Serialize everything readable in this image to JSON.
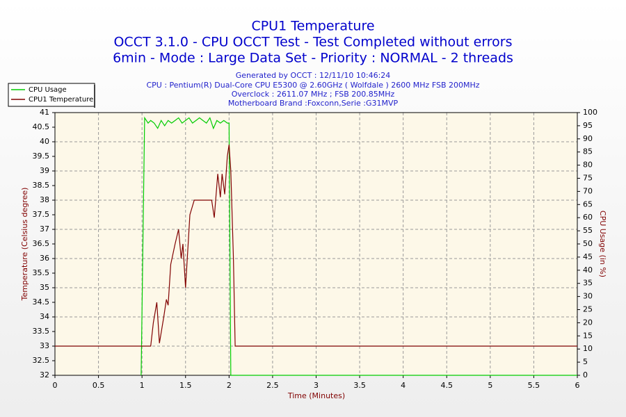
{
  "chart_data": {
    "type": "line",
    "title": "CPU1 Temperature",
    "subtitle": [
      "OCCT 3.1.0 - CPU OCCT Test - Test Completed without errors",
      "6min - Mode : Large Data Set - Priority : NORMAL - 2 threads"
    ],
    "annotations": [
      "Generated by OCCT : 12/11/10 10:46:24",
      "CPU : Pentium(R) Dual-Core CPU E5300 @ 2.60GHz ( Wolfdale ) 2600 MHz FSB 200MHz",
      "Overclock : 2611.07 MHz ; FSB 200.85MHz",
      "Motherboard Brand :Foxconn,Serie :G31MVP"
    ],
    "xlabel": "Time (Minutes)",
    "ylabel": "Temperature (Celsius degree)",
    "y2label": "CPU Usage (in %)",
    "xlim": [
      0,
      6
    ],
    "xticks": [
      0,
      0.5,
      1,
      1.5,
      2,
      2.5,
      3,
      3.5,
      4,
      4.5,
      5,
      5.5,
      6
    ],
    "ylim": [
      32,
      41
    ],
    "yticks": [
      32,
      32.5,
      33,
      33.5,
      34,
      34.5,
      35,
      35.5,
      36,
      36.5,
      37,
      37.5,
      38,
      38.5,
      39,
      39.5,
      40,
      40.5,
      41
    ],
    "y2lim": [
      0,
      100
    ],
    "y2ticks": [
      0,
      5,
      10,
      15,
      20,
      25,
      30,
      35,
      40,
      45,
      50,
      55,
      60,
      65,
      70,
      75,
      80,
      85,
      90,
      95,
      100
    ],
    "grid": true,
    "legend": "top-left",
    "series": [
      {
        "name": "CPU Usage",
        "color": "#00cc00",
        "axis": "y2",
        "x": [
          0.99,
          1.03,
          1.07,
          1.1,
          1.14,
          1.18,
          1.22,
          1.26,
          1.3,
          1.34,
          1.38,
          1.42,
          1.46,
          1.5,
          1.54,
          1.58,
          1.62,
          1.66,
          1.7,
          1.74,
          1.78,
          1.82,
          1.86,
          1.9,
          1.94,
          1.98,
          2.0,
          2.02,
          6
        ],
        "values": [
          0,
          98,
          96,
          97,
          96,
          94,
          97,
          95,
          97,
          96,
          97,
          98,
          96,
          97,
          98,
          96,
          97,
          98,
          97,
          96,
          98,
          94,
          97,
          96,
          97,
          96,
          96,
          0,
          0
        ]
      },
      {
        "name": "CPU1 Temperature",
        "color": "#800000",
        "axis": "y",
        "x": [
          0,
          1.1,
          1.13,
          1.17,
          1.2,
          1.25,
          1.28,
          1.3,
          1.33,
          1.38,
          1.42,
          1.45,
          1.47,
          1.5,
          1.52,
          1.55,
          1.6,
          1.8,
          1.83,
          1.87,
          1.9,
          1.92,
          1.95,
          1.98,
          2.0,
          2.02,
          2.05,
          2.07,
          6
        ],
        "values": [
          33,
          33,
          33.8,
          34.5,
          33.1,
          34,
          34.6,
          34.4,
          35.8,
          36.5,
          37,
          36,
          36.5,
          35,
          36,
          37.5,
          38,
          38,
          37.4,
          38.9,
          38.1,
          38.9,
          38.2,
          39.5,
          39.9,
          39,
          36,
          33,
          33
        ]
      }
    ]
  }
}
